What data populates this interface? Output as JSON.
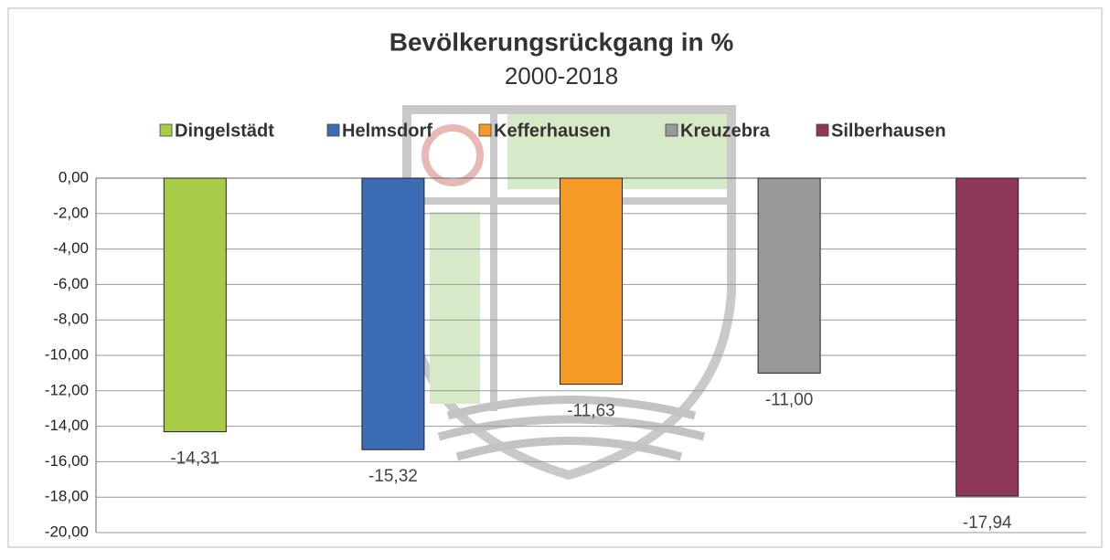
{
  "chart_data": {
    "type": "bar",
    "title": "Bevölkerungsrückgang in %",
    "subtitle": "2000-2018",
    "categories": [
      null
    ],
    "series": [
      {
        "name": "Dingelstädt",
        "color": "#a8cb48",
        "values": [
          -14.31
        ],
        "value_labels": [
          "-14,31"
        ]
      },
      {
        "name": "Helmsdorf",
        "color": "#3b6cb4",
        "values": [
          -15.32
        ],
        "value_labels": [
          "-15,32"
        ]
      },
      {
        "name": "Kefferhausen",
        "color": "#f49b27",
        "values": [
          -11.63
        ],
        "value_labels": [
          "-11,63"
        ]
      },
      {
        "name": "Kreuzebra",
        "color": "#999999",
        "values": [
          -11.0
        ],
        "value_labels": [
          "-11,00"
        ]
      },
      {
        "name": "Silberhausen",
        "color": "#8e3758",
        "values": [
          -17.94
        ],
        "value_labels": [
          "-17,94"
        ]
      }
    ],
    "ylim": [
      -20,
      0
    ],
    "yticks": [
      {
        "value": 0,
        "label": "0,00"
      },
      {
        "value": -2,
        "label": "-2,00"
      },
      {
        "value": -4,
        "label": "-4,00"
      },
      {
        "value": -6,
        "label": "-6,00"
      },
      {
        "value": -8,
        "label": "-8,00"
      },
      {
        "value": -10,
        "label": "-10,00"
      },
      {
        "value": -12,
        "label": "-12,00"
      },
      {
        "value": -14,
        "label": "-14,00"
      },
      {
        "value": -16,
        "label": "-16,00"
      },
      {
        "value": -18,
        "label": "-18,00"
      },
      {
        "value": -20,
        "label": "-20,00"
      }
    ],
    "grid": true,
    "legend": "top"
  }
}
